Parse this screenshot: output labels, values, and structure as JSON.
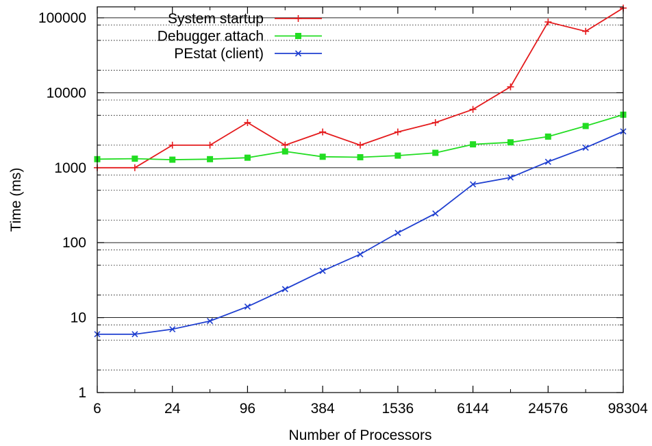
{
  "chart_data": {
    "type": "line",
    "title": "",
    "xlabel": "Number of Processors",
    "ylabel": "Time (ms)",
    "x_scale": "log2",
    "y_scale": "log10",
    "x_tick_labels": [
      "6",
      "24",
      "96",
      "384",
      "1536",
      "6144",
      "24576",
      "98304"
    ],
    "y_tick_labels": [
      "1",
      "10",
      "100",
      "1000",
      "10000",
      "100000"
    ],
    "x": [
      6,
      12,
      24,
      48,
      96,
      192,
      384,
      768,
      1536,
      3072,
      6144,
      12288,
      24576,
      49152,
      98304
    ],
    "ylim": [
      1,
      140000
    ],
    "grid": "horizontal dotted minor, solid major",
    "legend_position": "top-left",
    "series": [
      {
        "name": "System startup",
        "color": "#e41a1c",
        "marker": "plus",
        "values": [
          1000,
          1000,
          2000,
          2000,
          4000,
          2000,
          3000,
          2000,
          3000,
          4000,
          6000,
          12000,
          88000,
          66000,
          135000
        ]
      },
      {
        "name": "Debugger attach",
        "color": "#22dd22",
        "marker": "square",
        "values": [
          1300,
          1320,
          1280,
          1300,
          1360,
          1650,
          1400,
          1380,
          1450,
          1580,
          2050,
          2180,
          2600,
          3600,
          5100
        ]
      },
      {
        "name": "PEstat (client)",
        "color": "#1f3fd0",
        "marker": "x",
        "values": [
          6,
          6,
          7,
          9,
          14,
          24,
          42,
          70,
          135,
          245,
          600,
          740,
          1200,
          1850,
          3050
        ]
      }
    ]
  }
}
